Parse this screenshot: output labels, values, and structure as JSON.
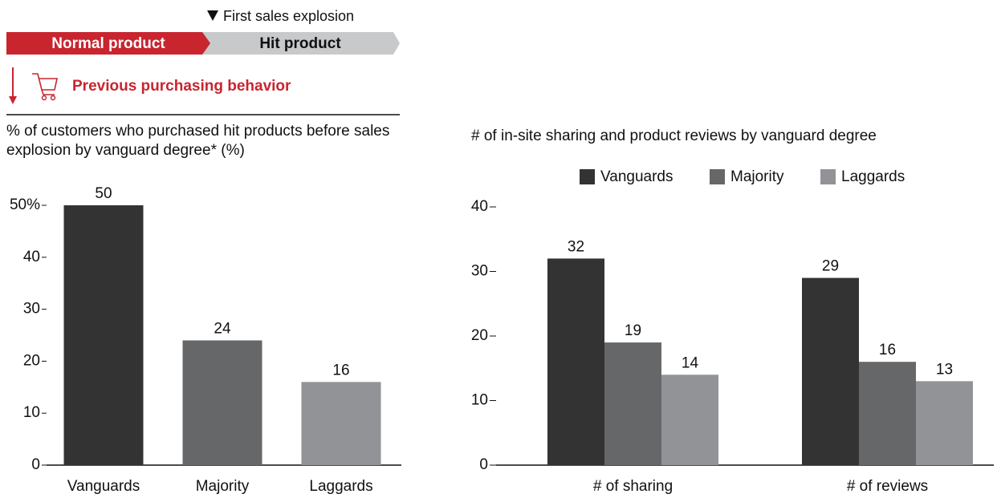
{
  "header": {
    "marker": "First sales explosion",
    "stage_1": "Normal product",
    "stage_2": "Hit product",
    "section": "Previous purchasing behavior"
  },
  "chart_data": [
    {
      "type": "bar",
      "title": "% of customers who purchased hit products before sales explosion by vanguard degree* (%)",
      "categories": [
        "Vanguards",
        "Majority",
        "Laggards"
      ],
      "values": [
        50,
        24,
        16
      ],
      "colors": [
        "#333333",
        "#666768",
        "#929396"
      ],
      "ylim": [
        0,
        50
      ],
      "yticks": [
        0,
        10,
        20,
        30,
        40,
        {
          "value": 50,
          "label": "50%"
        }
      ]
    },
    {
      "type": "grouped_bar",
      "title": "# of in-site sharing and product reviews by vanguard degree",
      "categories": [
        "# of sharing",
        "# of reviews"
      ],
      "series": [
        {
          "name": "Vanguards",
          "color": "#333333",
          "values": [
            32,
            29
          ]
        },
        {
          "name": "Majority",
          "color": "#666768",
          "values": [
            19,
            16
          ]
        },
        {
          "name": "Laggards",
          "color": "#929396",
          "values": [
            14,
            13
          ]
        }
      ],
      "ylim": [
        0,
        40
      ],
      "yticks": [
        0,
        10,
        20,
        30,
        40
      ],
      "legend": "top"
    }
  ]
}
